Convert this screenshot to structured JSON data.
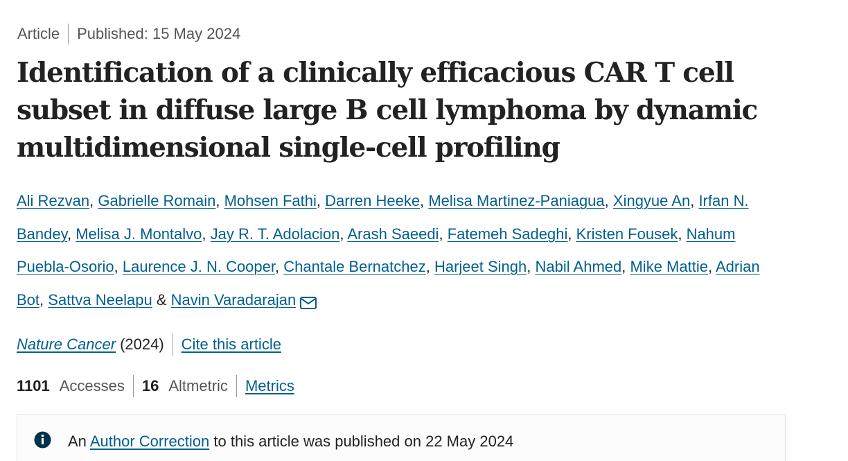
{
  "header": {
    "article_type": "Article",
    "published": "Published: 15 May 2024"
  },
  "title": "Identification of a clinically efficacious CAR T cell subset in diffuse large B cell lymphoma by dynamic multidimensional single-cell profiling",
  "authors": [
    "Ali Rezvan",
    "Gabrielle Romain",
    "Mohsen Fathi",
    "Darren Heeke",
    "Melisa Martinez-Paniagua",
    "Xingyue An",
    "Irfan N. Bandey",
    "Melisa J. Montalvo",
    "Jay R. T. Adolacion",
    "Arash Saeedi",
    "Fatemeh Sadeghi",
    "Kristen Fousek",
    "Nahum Puebla-Osorio",
    "Laurence J. N. Cooper",
    "Chantale Bernatchez",
    "Harjeet Singh",
    "Nabil Ahmed",
    "Mike Mattie",
    "Adrian Bot",
    "Sattva Neelapu",
    "Navin Varadarajan"
  ],
  "journal": {
    "name": "Nature Cancer",
    "year": "(2024)",
    "cite_label": "Cite this article"
  },
  "metrics": {
    "accesses_count": "1101",
    "accesses_label": "Accesses",
    "altmetric_count": "16",
    "altmetric_label": "Altmetric",
    "metrics_link": "Metrics"
  },
  "notice": {
    "prefix": "An",
    "link": "Author Correction",
    "suffix": "to this article was published on 22 May 2024"
  },
  "colors": {
    "link": "#025e8d",
    "text": "#222222",
    "muted": "#555555",
    "info_icon": "#01324b"
  },
  "icons": [
    "mail-icon",
    "info-icon"
  ]
}
